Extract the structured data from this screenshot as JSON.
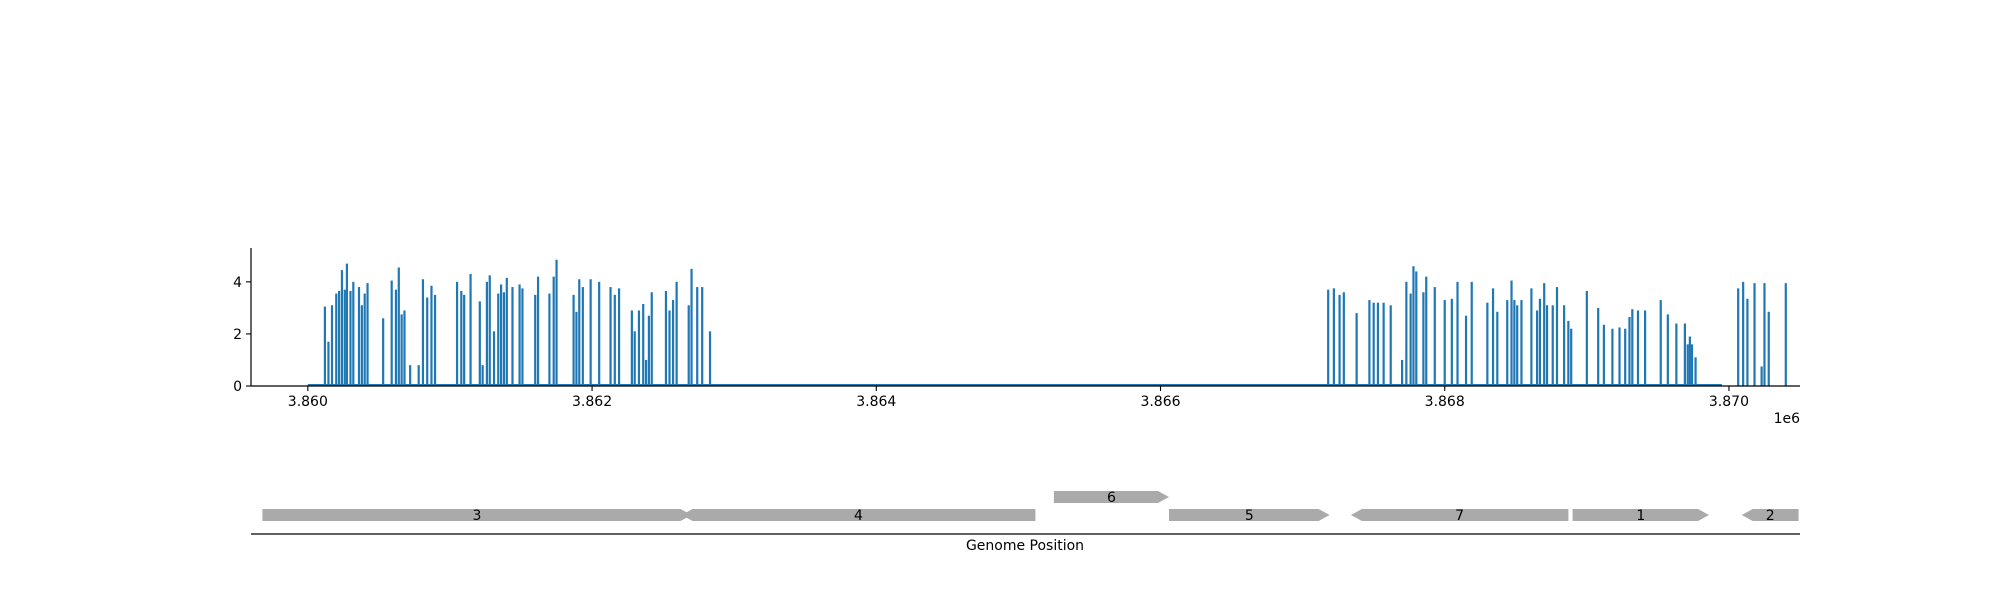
{
  "chart_data": [
    {
      "type": "bar",
      "title": "",
      "xlabel": "",
      "ylabel": "",
      "x_offset_label": "1e6",
      "xlim": [
        3859600,
        3870500
      ],
      "ylim": [
        0,
        5.3
      ],
      "xticks": [
        3860000,
        3862000,
        3864000,
        3866000,
        3868000,
        3870000
      ],
      "xtick_labels": [
        "3.860",
        "3.862",
        "3.864",
        "3.866",
        "3.868",
        "3.870"
      ],
      "yticks": [
        0,
        2,
        4
      ],
      "ytick_labels": [
        "0",
        "2",
        "4"
      ],
      "baseline_range": [
        3860000,
        3869950
      ],
      "color": "#1f77b4",
      "grid": false,
      "points": [
        [
          3860120,
          3.05
        ],
        [
          3860145,
          1.7
        ],
        [
          3860170,
          3.1
        ],
        [
          3860200,
          3.55
        ],
        [
          3860220,
          3.65
        ],
        [
          3860240,
          4.45
        ],
        [
          3860260,
          3.7
        ],
        [
          3860275,
          4.7
        ],
        [
          3860300,
          3.65
        ],
        [
          3860320,
          4.0
        ],
        [
          3860360,
          3.8
        ],
        [
          3860380,
          3.1
        ],
        [
          3860400,
          3.55
        ],
        [
          3860420,
          3.95
        ],
        [
          3860530,
          2.6
        ],
        [
          3860590,
          4.05
        ],
        [
          3860620,
          3.7
        ],
        [
          3860640,
          4.55
        ],
        [
          3860660,
          2.75
        ],
        [
          3860680,
          2.9
        ],
        [
          3860720,
          0.8
        ],
        [
          3860780,
          0.8
        ],
        [
          3860810,
          4.1
        ],
        [
          3860840,
          3.4
        ],
        [
          3860870,
          3.85
        ],
        [
          3860895,
          3.5
        ],
        [
          3861050,
          4.0
        ],
        [
          3861080,
          3.65
        ],
        [
          3861100,
          3.5
        ],
        [
          3861145,
          4.3
        ],
        [
          3861210,
          3.25
        ],
        [
          3861230,
          0.8
        ],
        [
          3861260,
          4.0
        ],
        [
          3861280,
          4.25
        ],
        [
          3861310,
          2.1
        ],
        [
          3861340,
          3.55
        ],
        [
          3861360,
          3.9
        ],
        [
          3861380,
          3.6
        ],
        [
          3861400,
          4.15
        ],
        [
          3861440,
          3.8
        ],
        [
          3861490,
          3.9
        ],
        [
          3861510,
          3.75
        ],
        [
          3861600,
          3.5
        ],
        [
          3861620,
          4.2
        ],
        [
          3861700,
          3.55
        ],
        [
          3861730,
          4.2
        ],
        [
          3861750,
          4.85
        ],
        [
          3861870,
          3.5
        ],
        [
          3861890,
          2.85
        ],
        [
          3861910,
          4.1
        ],
        [
          3861935,
          3.8
        ],
        [
          3861990,
          4.1
        ],
        [
          3862050,
          4.0
        ],
        [
          3862130,
          3.8
        ],
        [
          3862160,
          3.5
        ],
        [
          3862190,
          3.75
        ],
        [
          3862280,
          2.9
        ],
        [
          3862300,
          2.1
        ],
        [
          3862330,
          2.9
        ],
        [
          3862360,
          3.15
        ],
        [
          3862380,
          1.0
        ],
        [
          3862400,
          2.7
        ],
        [
          3862420,
          3.6
        ],
        [
          3862520,
          3.65
        ],
        [
          3862545,
          2.9
        ],
        [
          3862570,
          3.3
        ],
        [
          3862595,
          4.0
        ],
        [
          3862680,
          3.1
        ],
        [
          3862700,
          4.5
        ],
        [
          3862740,
          3.8
        ],
        [
          3862775,
          3.8
        ],
        [
          3862830,
          2.1
        ],
        [
          3867180,
          3.7
        ],
        [
          3867220,
          3.75
        ],
        [
          3867260,
          3.5
        ],
        [
          3867290,
          3.6
        ],
        [
          3867380,
          2.8
        ],
        [
          3867470,
          3.3
        ],
        [
          3867500,
          3.2
        ],
        [
          3867530,
          3.2
        ],
        [
          3867570,
          3.2
        ],
        [
          3867620,
          3.1
        ],
        [
          3867700,
          1.0
        ],
        [
          3867730,
          4.0
        ],
        [
          3867760,
          3.55
        ],
        [
          3867780,
          4.6
        ],
        [
          3867800,
          4.4
        ],
        [
          3867850,
          3.6
        ],
        [
          3867870,
          4.2
        ],
        [
          3867930,
          3.8
        ],
        [
          3868000,
          3.3
        ],
        [
          3868050,
          3.35
        ],
        [
          3868090,
          4.0
        ],
        [
          3868150,
          2.7
        ],
        [
          3868190,
          4.0
        ],
        [
          3868300,
          3.2
        ],
        [
          3868340,
          3.75
        ],
        [
          3868370,
          2.85
        ],
        [
          3868440,
          3.3
        ],
        [
          3868470,
          4.05
        ],
        [
          3868490,
          3.3
        ],
        [
          3868510,
          3.1
        ],
        [
          3868540,
          3.3
        ],
        [
          3868610,
          3.75
        ],
        [
          3868650,
          2.9
        ],
        [
          3868670,
          3.35
        ],
        [
          3868700,
          3.95
        ],
        [
          3868720,
          3.1
        ],
        [
          3868760,
          3.1
        ],
        [
          3868790,
          3.8
        ],
        [
          3868840,
          3.1
        ],
        [
          3868870,
          2.5
        ],
        [
          3868890,
          2.2
        ],
        [
          3869000,
          3.65
        ],
        [
          3869080,
          3.0
        ],
        [
          3869120,
          2.35
        ],
        [
          3869180,
          2.2
        ],
        [
          3869230,
          2.25
        ],
        [
          3869270,
          2.2
        ],
        [
          3869300,
          2.65
        ],
        [
          3869320,
          2.95
        ],
        [
          3869360,
          2.9
        ],
        [
          3869410,
          2.9
        ],
        [
          3869520,
          3.3
        ],
        [
          3869570,
          2.75
        ],
        [
          3869630,
          2.4
        ],
        [
          3869690,
          2.4
        ],
        [
          3869710,
          1.6
        ],
        [
          3869725,
          1.9
        ],
        [
          3869740,
          1.6
        ],
        [
          3869765,
          1.1
        ],
        [
          3870065,
          3.75
        ],
        [
          3870100,
          4.0
        ],
        [
          3870130,
          3.35
        ],
        [
          3870180,
          3.95
        ],
        [
          3870230,
          0.75
        ],
        [
          3870250,
          3.95
        ],
        [
          3870280,
          2.85
        ],
        [
          3870400,
          3.95
        ]
      ]
    },
    {
      "type": "diagram",
      "title": "",
      "xlabel": "Genome Position",
      "color": "#aaaaaa",
      "genes": [
        {
          "label": "3",
          "start": 3859680,
          "end": 3862700,
          "strand": "+",
          "row": 0
        },
        {
          "label": "4",
          "start": 3862630,
          "end": 3865120,
          "strand": "-",
          "row": 0
        },
        {
          "label": "6",
          "start": 3865250,
          "end": 3866060,
          "strand": "+",
          "row": 1
        },
        {
          "label": "5",
          "start": 3866060,
          "end": 3867190,
          "strand": "+",
          "row": 0
        },
        {
          "label": "7",
          "start": 3867340,
          "end": 3868870,
          "strand": "-",
          "row": 0
        },
        {
          "label": "1",
          "start": 3868900,
          "end": 3869860,
          "strand": "+",
          "row": 0
        },
        {
          "label": "2",
          "start": 3870090,
          "end": 3870490,
          "strand": "-",
          "row": 0
        }
      ]
    }
  ]
}
